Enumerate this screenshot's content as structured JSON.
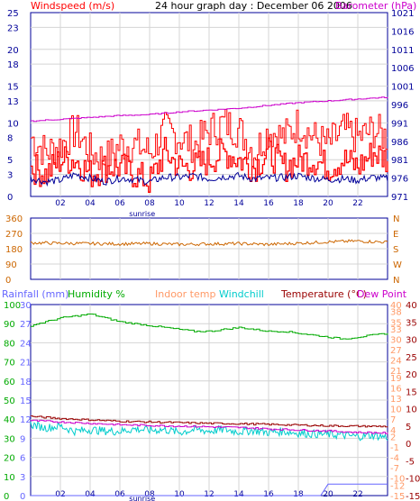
{
  "title": "24 hour graph day : December 06 2006",
  "x_ticks": [
    "02",
    "04",
    "06",
    "08",
    "10",
    "12",
    "14",
    "16",
    "18",
    "20",
    "22"
  ],
  "sunrise_label": "sunrise",
  "colors": {
    "wind": "#ff0000",
    "gust": "#ff0000",
    "avg_wind": "#000099",
    "barometer": "#cc00cc",
    "direction": "#cc6600",
    "rainfall": "#6666ff",
    "humidity": "#00aa00",
    "indoor_temp": "#ff9966",
    "windchill": "#00cccc",
    "temperature": "#990000",
    "dew_point": "#cc00cc",
    "frame": "#000099"
  },
  "chart_data": [
    {
      "type": "line",
      "name": "wind-barometer",
      "left_axis_label": "Windspeed (m/s)",
      "right_axis_label": "Barometer (hPa)",
      "left_ticks": [
        0,
        3,
        5,
        8,
        10,
        13,
        15,
        18,
        20,
        23,
        25
      ],
      "right_ticks": [
        971,
        976,
        981,
        986,
        991,
        996,
        1001,
        1006,
        1011,
        1016,
        1021
      ],
      "ylim_left": [
        0,
        25
      ],
      "ylim_right": [
        971,
        1021
      ],
      "series": [
        {
          "key": "gust",
          "x": [
            0,
            1,
            2,
            3,
            4,
            5,
            6,
            7,
            8,
            9,
            10,
            11,
            12,
            13,
            14,
            15,
            16,
            17,
            18,
            19,
            20,
            21,
            22,
            23,
            24
          ],
          "values": [
            8,
            6,
            7,
            9,
            6,
            5,
            7,
            7,
            6,
            9,
            8,
            7,
            9,
            10,
            9,
            6,
            9,
            8,
            10,
            8,
            7,
            9,
            8,
            9,
            8
          ]
        },
        {
          "key": "wind",
          "x": [
            0,
            1,
            2,
            3,
            4,
            5,
            6,
            7,
            8,
            9,
            10,
            11,
            12,
            13,
            14,
            15,
            16,
            17,
            18,
            19,
            20,
            21,
            22,
            23,
            24
          ],
          "values": [
            4,
            3,
            5,
            5,
            3,
            4,
            4,
            3,
            2,
            6,
            4,
            4,
            5,
            6,
            5,
            4,
            6,
            4,
            5,
            5,
            4,
            5,
            4,
            6,
            5
          ]
        },
        {
          "key": "avg_wind",
          "x": [
            0,
            1,
            2,
            3,
            4,
            5,
            6,
            7,
            8,
            9,
            10,
            11,
            12,
            13,
            14,
            15,
            16,
            17,
            18,
            19,
            20,
            21,
            22,
            23,
            24
          ],
          "values": [
            2.5,
            2,
            2.2,
            3,
            2.5,
            2,
            2.5,
            2.3,
            2,
            2.6,
            2.6,
            2.8,
            2.4,
            2.7,
            2.8,
            2.4,
            2.5,
            2.6,
            2.8,
            2.5,
            2.3,
            2.4,
            2.2,
            2.6,
            2.4
          ]
        },
        {
          "key": "barometer",
          "x": [
            0,
            2,
            4,
            6,
            8,
            10,
            12,
            14,
            16,
            18,
            20,
            22,
            24
          ],
          "values": [
            991.5,
            992,
            992.5,
            993,
            993.3,
            994,
            994.5,
            995,
            995.8,
            996.5,
            997,
            997.5,
            998
          ]
        }
      ]
    },
    {
      "type": "line",
      "name": "wind-direction",
      "left_ticks": [
        0,
        90,
        180,
        270,
        360
      ],
      "right_ticks": [
        "N",
        "W",
        "S",
        "E",
        "N"
      ],
      "ylim": [
        0,
        360
      ],
      "series": [
        {
          "key": "direction",
          "x": [
            0,
            2,
            4,
            6,
            8,
            10,
            12,
            14,
            16,
            18,
            20,
            22,
            24
          ],
          "values": [
            215,
            212,
            210,
            208,
            210,
            205,
            208,
            210,
            205,
            212,
            220,
            225,
            218
          ]
        }
      ]
    },
    {
      "type": "line",
      "name": "temperature-humidity-rain",
      "legend": [
        "Rainfall (mm)",
        "Humidity %",
        "Indoor temp",
        "Windchill",
        "Temperature (°C)",
        "Dew Point"
      ],
      "left_ticks_humidity": [
        0,
        10,
        20,
        30,
        40,
        50,
        60,
        70,
        80,
        90,
        100
      ],
      "left_ticks_rain": [
        0,
        3,
        6,
        9,
        12,
        15,
        18,
        21,
        24,
        27,
        30
      ],
      "right_ticks_1": [
        -15,
        -12,
        -10,
        -7,
        -4,
        -1,
        2,
        4,
        7,
        10,
        13,
        16,
        19,
        21,
        24,
        27,
        30,
        33,
        35,
        38,
        40
      ],
      "right_ticks_2": [
        -15,
        -10,
        -5,
        0,
        5,
        10,
        15,
        20,
        25,
        30,
        35,
        40
      ],
      "ylim_humidity": [
        0,
        100
      ],
      "ylim_rain": [
        0,
        30
      ],
      "ylim_temp": [
        -15,
        40
      ],
      "series": [
        {
          "key": "humidity",
          "x": [
            0,
            1,
            2,
            3,
            4,
            5,
            6,
            7,
            8,
            9,
            10,
            11,
            12,
            13,
            14,
            15,
            16,
            17,
            18,
            19,
            20,
            21,
            22,
            23,
            24
          ],
          "values": [
            89,
            91,
            93,
            94,
            95,
            93,
            91,
            90,
            89,
            88,
            87,
            86,
            86,
            87,
            88,
            87,
            86,
            86,
            85,
            84,
            83,
            82,
            83,
            84,
            85
          ]
        },
        {
          "key": "temperature",
          "x": [
            0,
            2,
            4,
            6,
            8,
            10,
            12,
            14,
            16,
            18,
            20,
            22,
            24
          ],
          "values": [
            7.8,
            7.2,
            6.8,
            6.4,
            6.2,
            6,
            5.8,
            5.7,
            5.5,
            5.3,
            5.1,
            5,
            4.9
          ]
        },
        {
          "key": "dew_point",
          "x": [
            0,
            2,
            4,
            6,
            8,
            10,
            12,
            14,
            16,
            18,
            20,
            22,
            24
          ],
          "values": [
            6.6,
            6.2,
            5.8,
            5.4,
            5.2,
            5.0,
            4.8,
            4.6,
            4.2,
            3.9,
            3.6,
            3.2,
            3.0
          ]
        },
        {
          "key": "windchill",
          "x": [
            0,
            1,
            2,
            3,
            4,
            5,
            6,
            7,
            8,
            9,
            10,
            11,
            12,
            13,
            14,
            15,
            16,
            17,
            18,
            19,
            20,
            21,
            22,
            23,
            24
          ],
          "values": [
            5.5,
            4.5,
            5,
            3.5,
            4,
            3.6,
            3.5,
            4.2,
            3.8,
            4,
            3.2,
            4,
            3.6,
            4,
            3.4,
            3.8,
            3.2,
            3.5,
            3,
            2.8,
            2.6,
            2.4,
            2,
            2.4,
            1.8
          ]
        },
        {
          "key": "rainfall",
          "x": [
            0,
            2,
            4,
            6,
            8,
            10,
            12,
            14,
            16,
            18,
            19.5,
            20,
            22,
            24
          ],
          "values": [
            0,
            0,
            0,
            0,
            0,
            0,
            0,
            0,
            0,
            0,
            0,
            1.8,
            1.8,
            1.8
          ]
        }
      ]
    }
  ]
}
